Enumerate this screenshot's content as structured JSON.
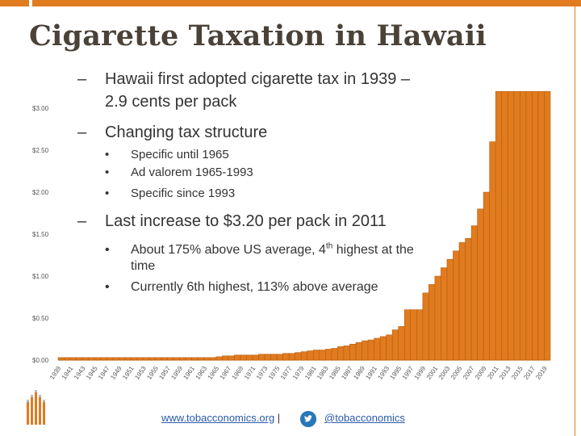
{
  "title": "Cigarette Taxation in Hawaii",
  "colors": {
    "accent": "#e07b1f",
    "bar": "#e07b1f",
    "bar_stroke": "#b75d10",
    "title": "#4a4238"
  },
  "bullets": [
    {
      "text": "Hawaii first adopted cigarette tax in 1939 – 2.9 cents per pack",
      "subs": []
    },
    {
      "text": "Changing tax structure",
      "subs": [
        "Specific until 1965",
        "Ad valorem 1965-1993",
        "Specific since 1993"
      ]
    },
    {
      "text": "Last increase to $3.20 per pack in 2011",
      "subs": []
    }
  ],
  "notes": {
    "note1_pre": "About 175% above US average, 4",
    "note1_sup": "th",
    "note1_post": " highest at the time",
    "note2": "Currently 6th highest, 113% above average"
  },
  "footer": {
    "website": "www.tobacconomics.org",
    "separator": " |",
    "twitter": "@tobacconomics"
  },
  "icons": {
    "footer_icon": "twitter-bird-icon",
    "logo": "tobacconomics-logo-icon"
  },
  "chart_data": {
    "type": "bar",
    "title": "",
    "xlabel": "",
    "ylabel": "",
    "ylim": [
      0,
      3.0
    ],
    "y_ticks": [
      {
        "value": 3.0,
        "label": "$3.00"
      },
      {
        "value": 2.5,
        "label": "$2.50"
      },
      {
        "value": 2.0,
        "label": "$2.00"
      },
      {
        "value": 1.5,
        "label": "$1.50"
      },
      {
        "value": 1.0,
        "label": "$1.00"
      },
      {
        "value": 0.5,
        "label": "$0.50"
      },
      {
        "value": 0.0,
        "label": "$0.00"
      }
    ],
    "x_tick_labels": [
      "1939",
      "1941",
      "1943",
      "1945",
      "1947",
      "1949",
      "1951",
      "1953",
      "1955",
      "1957",
      "1959",
      "1961",
      "1963",
      "1965",
      "1967",
      "1969",
      "1971",
      "1973",
      "1975",
      "1977",
      "1979",
      "1981",
      "1983",
      "1985",
      "1987",
      "1989",
      "1991",
      "1993",
      "1995",
      "1997",
      "1999",
      "2001",
      "2003",
      "2005",
      "2007",
      "2009",
      "2011",
      "2013",
      "2015",
      "2017",
      "2019"
    ],
    "categories": [
      "1939",
      "1940",
      "1941",
      "1942",
      "1943",
      "1944",
      "1945",
      "1946",
      "1947",
      "1948",
      "1949",
      "1950",
      "1951",
      "1952",
      "1953",
      "1954",
      "1955",
      "1956",
      "1957",
      "1958",
      "1959",
      "1960",
      "1961",
      "1962",
      "1963",
      "1964",
      "1965",
      "1966",
      "1967",
      "1968",
      "1969",
      "1970",
      "1971",
      "1972",
      "1973",
      "1974",
      "1975",
      "1976",
      "1977",
      "1978",
      "1979",
      "1980",
      "1981",
      "1982",
      "1983",
      "1984",
      "1985",
      "1986",
      "1987",
      "1988",
      "1989",
      "1990",
      "1991",
      "1992",
      "1993",
      "1994",
      "1995",
      "1996",
      "1997",
      "1998",
      "1999",
      "2000",
      "2001",
      "2002",
      "2003",
      "2004",
      "2005",
      "2006",
      "2007",
      "2008",
      "2009",
      "2010",
      "2011",
      "2012",
      "2013",
      "2014",
      "2015",
      "2016",
      "2017",
      "2018",
      "2019"
    ],
    "values": [
      0.03,
      0.03,
      0.03,
      0.03,
      0.03,
      0.03,
      0.03,
      0.03,
      0.03,
      0.03,
      0.03,
      0.03,
      0.03,
      0.03,
      0.03,
      0.03,
      0.03,
      0.03,
      0.03,
      0.03,
      0.03,
      0.03,
      0.03,
      0.03,
      0.03,
      0.03,
      0.04,
      0.05,
      0.05,
      0.06,
      0.06,
      0.06,
      0.06,
      0.07,
      0.07,
      0.07,
      0.07,
      0.08,
      0.08,
      0.09,
      0.1,
      0.11,
      0.12,
      0.12,
      0.13,
      0.14,
      0.16,
      0.17,
      0.19,
      0.21,
      0.23,
      0.24,
      0.26,
      0.28,
      0.3,
      0.36,
      0.4,
      0.6,
      0.6,
      0.6,
      0.8,
      0.9,
      1.0,
      1.1,
      1.2,
      1.3,
      1.4,
      1.45,
      1.6,
      1.8,
      2.0,
      2.6,
      3.2,
      3.2,
      3.2,
      3.2,
      3.2,
      3.2,
      3.2,
      3.2,
      3.2
    ]
  }
}
